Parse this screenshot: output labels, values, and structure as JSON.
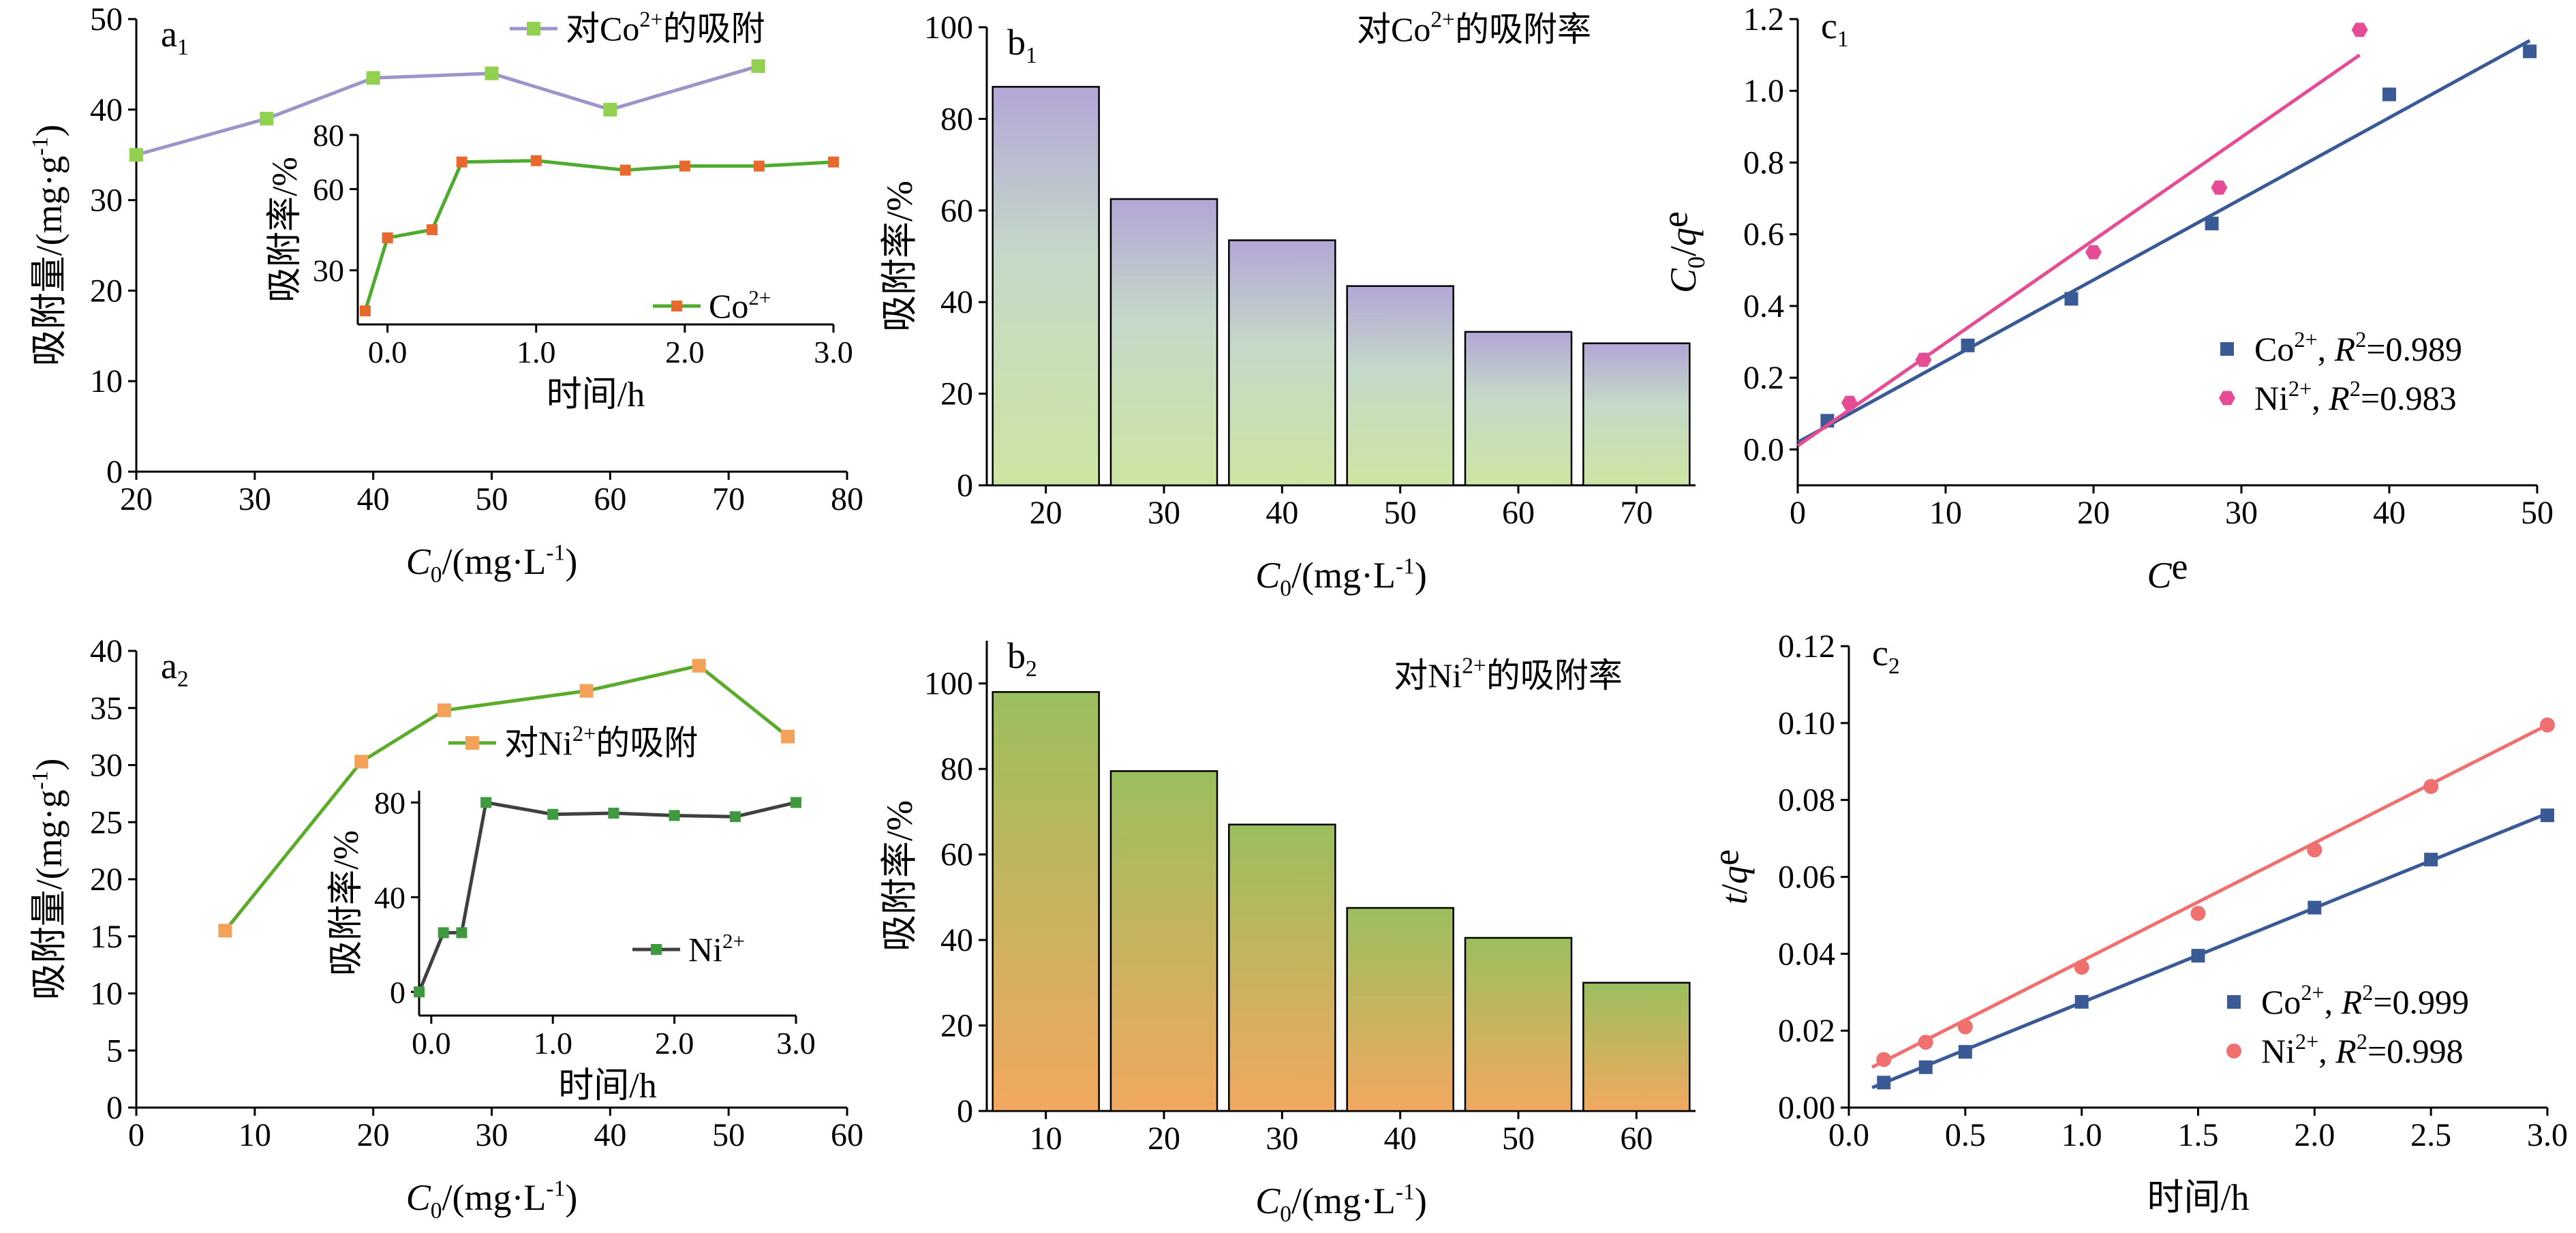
{
  "colors": {
    "co_line": "#9b95c9",
    "co_marker": "#92d050",
    "inset_line": "#4eab2d",
    "inset_marker": "#e8692e",
    "ni_line": "#5aab2a",
    "ni_marker": "#f4a15a",
    "ni_inset_line": "#404040",
    "ni_inset_marker": "#3f9a3f",
    "bar_b1_top": "#b3a6d6",
    "bar_b1_bottom": "#cde5a2",
    "bar_b2_top": "#9bbf5e",
    "bar_b2_bottom": "#f2a860",
    "fit_co": "#3a5a96",
    "fit_ni_c1": "#e64c96",
    "fit_ni_c2": "#f07070"
  },
  "chart_data": [
    {
      "id": "a1",
      "panel_label": "a1",
      "type": "line",
      "xlabel": "C0/(mg·L-1)",
      "ylabel": "吸附量/(mg·g-1)",
      "xlim": [
        20,
        80
      ],
      "ylim": [
        0,
        50
      ],
      "xticks": [
        "20",
        "30",
        "40",
        "50",
        "60",
        "70",
        "80"
      ],
      "yticks": [
        "0",
        "10",
        "20",
        "30",
        "40",
        "50"
      ],
      "legend": "对Co2+的吸附",
      "series": [
        {
          "name": "对Co2+的吸附",
          "x": [
            20,
            31,
            40,
            50,
            60,
            72.5
          ],
          "y": [
            35,
            39,
            43.5,
            44,
            40,
            44.8
          ]
        }
      ],
      "inset": {
        "type": "line",
        "xlabel": "时间/h",
        "ylabel": "吸附率/%",
        "xlim": [
          -0.2,
          3.0
        ],
        "ylim": [
          10,
          80
        ],
        "xticks": [
          "0.0",
          "1.0",
          "2.0",
          "3.0"
        ],
        "yticks": [
          "30",
          "60",
          "80"
        ],
        "legend": "Co2+",
        "series": [
          {
            "name": "Co2+",
            "x": [
              -0.15,
              0.0,
              0.3,
              0.5,
              1.0,
              1.6,
              2.0,
              2.5,
              3.0
            ],
            "y": [
              15,
              42,
              45,
              70,
              70.5,
              67,
              68.5,
              68.5,
              70
            ]
          }
        ]
      }
    },
    {
      "id": "b1",
      "panel_label": "b1",
      "type": "bar",
      "xlabel": "C0/(mg·L-1)",
      "ylabel": "吸附率/%",
      "title": "对Co2+的吸附率",
      "categories": [
        "20",
        "30",
        "40",
        "50",
        "60",
        "70"
      ],
      "values": [
        87,
        62.5,
        53.5,
        43.5,
        33.5,
        31
      ],
      "ylim": [
        0,
        100
      ],
      "yticks": [
        "0",
        "20",
        "40",
        "60",
        "80",
        "100"
      ]
    },
    {
      "id": "c1",
      "panel_label": "c1",
      "type": "scatter",
      "xlabel": "Ce",
      "ylabel": "C0/qe",
      "xlim": [
        0,
        50
      ],
      "ylim": [
        -0.1,
        1.2
      ],
      "xticks": [
        "0",
        "10",
        "20",
        "30",
        "40",
        "50"
      ],
      "yticks": [
        "0.0",
        "0.2",
        "0.4",
        "0.6",
        "0.8",
        "1.0",
        "1.2"
      ],
      "series": [
        {
          "name": "Co2+",
          "r2": "R2=0.989",
          "x": [
            2,
            11.5,
            18.5,
            28,
            40,
            49.5
          ],
          "y": [
            0.08,
            0.29,
            0.42,
            0.63,
            0.99,
            1.11
          ],
          "fit": [
            [
              0,
              0.02
            ],
            [
              49.5,
              1.14
            ]
          ]
        },
        {
          "name": "Ni2+",
          "r2": "R2=0.983",
          "x": [
            3.5,
            8.5,
            20,
            28.5,
            38
          ],
          "y": [
            0.13,
            0.25,
            0.55,
            0.73,
            1.17
          ],
          "fit": [
            [
              0,
              0.01
            ],
            [
              38,
              1.1
            ]
          ]
        }
      ]
    },
    {
      "id": "a2",
      "panel_label": "a2",
      "type": "line",
      "xlabel": "C0/(mg·L-1)",
      "ylabel": "吸附量/(mg·g-1)",
      "xlim": [
        0,
        60
      ],
      "ylim": [
        0,
        40
      ],
      "xticks": [
        "0",
        "10",
        "20",
        "30",
        "40",
        "50",
        "60"
      ],
      "yticks": [
        "0",
        "5",
        "10",
        "15",
        "20",
        "25",
        "30",
        "35",
        "40"
      ],
      "legend": "对Ni2+的吸附",
      "series": [
        {
          "name": "对Ni2+的吸附",
          "x": [
            7.5,
            19,
            26,
            38,
            47.5,
            55
          ],
          "y": [
            15.5,
            30.3,
            34.8,
            36.5,
            38.7,
            32.5
          ]
        }
      ],
      "inset": {
        "type": "line",
        "xlabel": "时间/h",
        "ylabel": "吸附率/%",
        "xlim": [
          -0.1,
          3.0
        ],
        "ylim": [
          -10,
          85
        ],
        "xticks": [
          "0.0",
          "1.0",
          "2.0",
          "3.0"
        ],
        "yticks": [
          "0",
          "40",
          "80"
        ],
        "legend": "Ni2+",
        "series": [
          {
            "name": "Ni2+",
            "x": [
              -0.1,
              0.1,
              0.25,
              0.45,
              1.0,
              1.5,
              2.0,
              2.5,
              3.0
            ],
            "y": [
              0,
              25,
              25,
              80,
              75,
              75.5,
              74.5,
              74,
              80
            ]
          }
        ]
      }
    },
    {
      "id": "b2",
      "panel_label": "b2",
      "type": "bar",
      "xlabel": "C0/(mg·L-1)",
      "ylabel": "吸附率/%",
      "title": "对Ni2+的吸附率",
      "categories": [
        "10",
        "20",
        "30",
        "40",
        "50",
        "60"
      ],
      "values": [
        98,
        79.5,
        67,
        47.5,
        40.5,
        30
      ],
      "ylim": [
        0,
        110
      ],
      "yticks": [
        "0",
        "20",
        "40",
        "60",
        "80",
        "100"
      ]
    },
    {
      "id": "c2",
      "panel_label": "c2",
      "type": "scatter",
      "xlabel": "时间/h",
      "ylabel": "t/qe",
      "xlim": [
        0,
        3.0
      ],
      "ylim": [
        0,
        0.12
      ],
      "xticks": [
        "0.0",
        "0.5",
        "1.0",
        "1.5",
        "2.0",
        "2.5",
        "3.0"
      ],
      "yticks": [
        "0.00",
        "0.02",
        "0.04",
        "0.06",
        "0.08",
        "0.10",
        "0.12"
      ],
      "series": [
        {
          "name": "Co2+",
          "r2": "R2=0.999",
          "x": [
            0.15,
            0.33,
            0.5,
            1.0,
            1.5,
            2.0,
            2.5,
            3.0
          ],
          "y": [
            0.0065,
            0.0105,
            0.0145,
            0.0275,
            0.0395,
            0.052,
            0.0645,
            0.076
          ],
          "fit": [
            [
              0.1,
              0.0052
            ],
            [
              3.0,
              0.0765
            ]
          ]
        },
        {
          "name": "Ni2+",
          "r2": "R2=0.998",
          "x": [
            0.15,
            0.33,
            0.5,
            1.0,
            1.5,
            2.0,
            2.5,
            3.0
          ],
          "y": [
            0.0125,
            0.017,
            0.021,
            0.0365,
            0.0505,
            0.067,
            0.0835,
            0.0995
          ],
          "fit": [
            [
              0.1,
              0.0105
            ],
            [
              3.0,
              0.0995
            ]
          ]
        }
      ]
    }
  ]
}
